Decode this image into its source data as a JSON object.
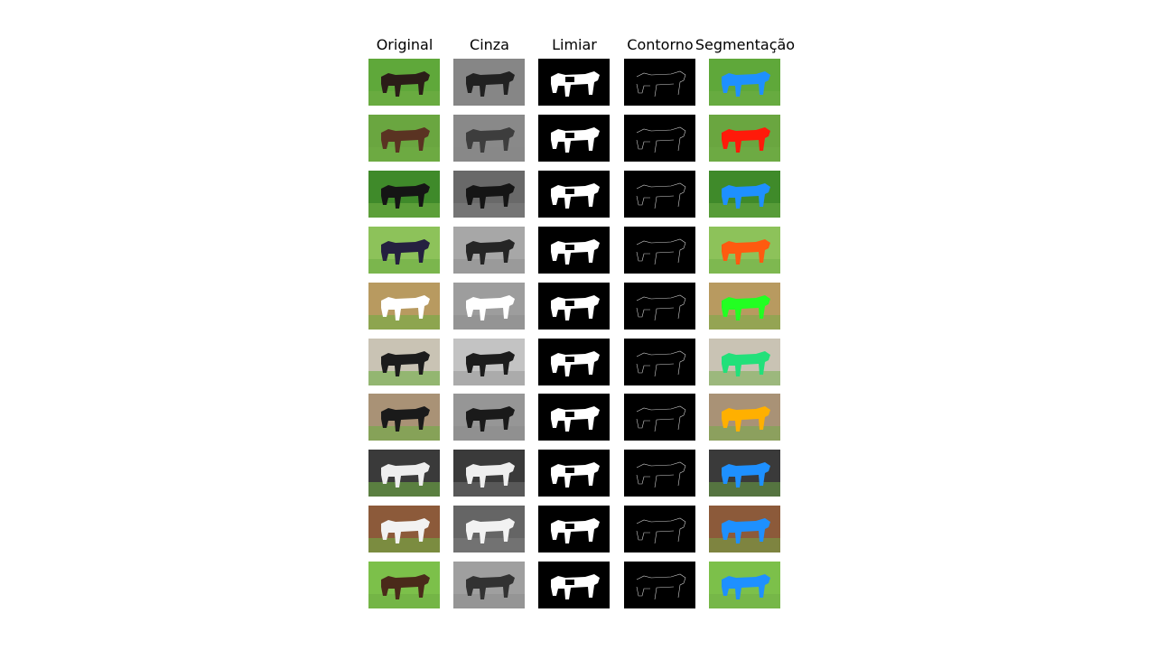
{
  "columns": [
    "Original",
    "Cinza",
    "Limiar",
    "Contorno",
    "Segmentação"
  ],
  "rows": [
    {
      "seg_color": "#1e90ff",
      "bg": "#5fa83a",
      "animal": "#2b1d18"
    },
    {
      "seg_color": "#ff1a0a",
      "bg": "#6aa640",
      "animal": "#5a3322"
    },
    {
      "seg_color": "#1e90ff",
      "bg": "#3f8a2a",
      "animal": "#151515"
    },
    {
      "seg_color": "#ff5a10",
      "bg": "#8dc25a",
      "animal": "#252040"
    },
    {
      "seg_color": "#22ff22",
      "bg": "#b89a60",
      "animal": "#ffffff"
    },
    {
      "seg_color": "#22e07a",
      "bg": "#c9c3b4",
      "animal": "#1c1c1c"
    },
    {
      "seg_color": "#ffb000",
      "bg": "#a99276",
      "animal": "#1a1a1a"
    },
    {
      "seg_color": "#1e90ff",
      "bg": "#3a3a3a",
      "animal": "#eeeeee"
    },
    {
      "seg_color": "#1e90ff",
      "bg": "#8c5a3a",
      "animal": "#f2f2f2"
    },
    {
      "seg_color": "#1e90ff",
      "bg": "#7cc04a",
      "animal": "#4a2a1a"
    }
  ]
}
